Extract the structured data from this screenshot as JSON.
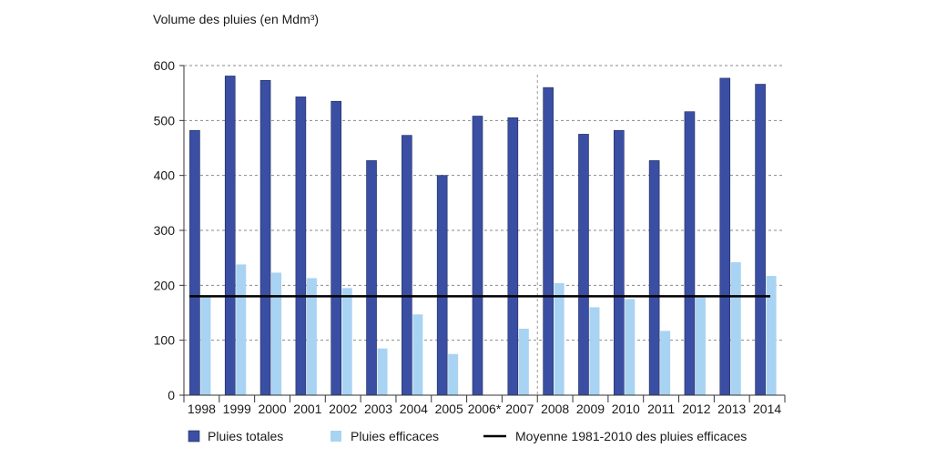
{
  "chart_data": {
    "type": "bar",
    "ylabel": "Volume des pluies (en Mdm³)",
    "ylim": [
      0,
      600
    ],
    "yticks": [
      0,
      100,
      200,
      300,
      400,
      500,
      600
    ],
    "grid": "horizontal-dashed",
    "categories": [
      "1998",
      "1999",
      "2000",
      "2001",
      "2002",
      "2003",
      "2004",
      "2005",
      "2006*",
      "2007",
      "2008",
      "2009",
      "2010",
      "2011",
      "2012",
      "2013",
      "2014"
    ],
    "series": [
      {
        "name": "Pluies totales",
        "color": "#3a4fa3",
        "values": [
          482,
          581,
          573,
          543,
          535,
          427,
          473,
          400,
          508,
          505,
          560,
          475,
          482,
          427,
          516,
          577,
          566
        ]
      },
      {
        "name": "Pluies efficaces",
        "color": "#a9d3f2",
        "values": [
          180,
          238,
          223,
          213,
          195,
          85,
          147,
          75,
          null,
          121,
          204,
          160,
          175,
          117,
          178,
          242,
          217
        ]
      }
    ],
    "reference_line": {
      "name": "Moyenne 1981-2010 des pluies efficaces",
      "value": 180,
      "color": "#000000"
    },
    "separator_after_category": "2007",
    "legend_position": "bottom"
  }
}
